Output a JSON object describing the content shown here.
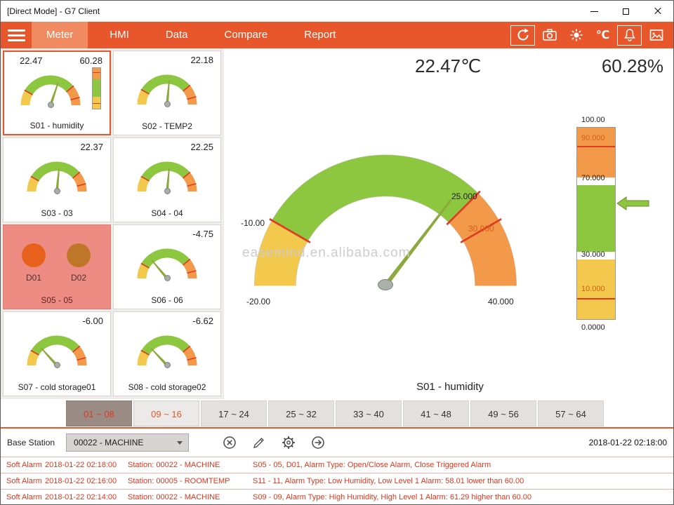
{
  "window": {
    "title": "[Direct Mode] - G7 Client"
  },
  "nav": {
    "tabs": [
      {
        "label": "Meter",
        "active": true
      },
      {
        "label": "HMI",
        "active": false
      },
      {
        "label": "Data",
        "active": false
      },
      {
        "label": "Compare",
        "active": false
      },
      {
        "label": "Report",
        "active": false
      }
    ],
    "temp_unit": "℃"
  },
  "sidebar": {
    "tiles": [
      {
        "label": "S01 - humidity",
        "value": "22.47",
        "value2": "60.28",
        "needle_deg": 18.5,
        "selected": true
      },
      {
        "label": "S02 - TEMP2",
        "value": "22.18",
        "needle_deg": 5
      },
      {
        "label": "S03 - 03",
        "value": "22.37",
        "needle_deg": 5.3
      },
      {
        "label": "S04 - 04",
        "value": "22.25",
        "needle_deg": 5.1
      },
      {
        "label": "S05 - 05",
        "d1": "D01",
        "d2": "D02"
      },
      {
        "label": "S06 - 06",
        "value": "-4.75",
        "needle_deg": -40
      },
      {
        "label": "S07 - cold storage01",
        "value": "-6.00",
        "needle_deg": -42
      },
      {
        "label": "S08 - cold storage02",
        "value": "-6.62",
        "needle_deg": -43
      }
    ]
  },
  "main": {
    "temp_reading": "22.47℃",
    "humidity_reading": "60.28%",
    "watermark": "easemind.en.alibaba.com",
    "gauge_title": "S01 - humidity"
  },
  "chart_data": [
    {
      "type": "gauge",
      "title": "S01 - humidity",
      "value": 22.47,
      "min": -20,
      "max": 40,
      "needle_deg": 37.4,
      "zones": [
        {
          "from": -20,
          "to": -10,
          "color": "#F2C94C"
        },
        {
          "from": -10,
          "to": 25,
          "color": "#8DC63F"
        },
        {
          "from": 25,
          "to": 40,
          "color": "#F2994A"
        }
      ],
      "labels": {
        "min": "-20.00",
        "low": "-10.00",
        "hi1": "25.000",
        "hi2": "30.000",
        "max": "40.000"
      }
    },
    {
      "type": "bar-gauge",
      "value": 60.28,
      "min": 0,
      "max": 100,
      "pointer_top_pct": 39.7,
      "labels": {
        "top": "100.00",
        "l90": "90.000",
        "l70": "70.000",
        "l30": "30.000",
        "l10": "10.000",
        "bottom": "0.0000"
      }
    }
  ],
  "range_tabs": [
    {
      "label": "01 ~ 08",
      "state": "active"
    },
    {
      "label": "09 ~ 16",
      "state": "highlight"
    },
    {
      "label": "17 ~ 24",
      "state": "normal"
    },
    {
      "label": "25 ~ 32",
      "state": "normal"
    },
    {
      "label": "33 ~ 40",
      "state": "normal"
    },
    {
      "label": "41 ~ 48",
      "state": "normal"
    },
    {
      "label": "49 ~ 56",
      "state": "normal"
    },
    {
      "label": "57 ~ 64",
      "state": "normal"
    }
  ],
  "statusbar": {
    "base_station_label": "Base Station",
    "station_selected": "00022 - MACHINE",
    "timestamp": "2018-01-22 02:18:00"
  },
  "alarms": [
    {
      "type": "Soft Alarm",
      "time": "2018-01-22 02:18:00",
      "station": "Station: 00022 - MACHINE",
      "detail": "S05 - 05, D01, Alarm Type: Open/Close Alarm, Close Triggered Alarm"
    },
    {
      "type": "Soft Alarm",
      "time": "2018-01-22 02:16:00",
      "station": "Station: 00005 - ROOMTEMP",
      "detail": "S11 - 11, Alarm Type: Low Humidity, Low Level 1 Alarm: 58.01 lower than 60.00"
    },
    {
      "type": "Soft Alarm",
      "time": "2018-01-22 02:14:00",
      "station": "Station: 00022 - MACHINE",
      "detail": "S09 - 09, Alarm Type: High Humidity, High Level 1 Alarm: 61.29 higher than 60.00"
    }
  ],
  "colors": {
    "accent_orange": "#E8552B",
    "gauge_green": "#8DC63F",
    "gauge_yellow": "#F2C94C",
    "gauge_orange": "#F2994A",
    "alarm_red": "#E0361C"
  }
}
